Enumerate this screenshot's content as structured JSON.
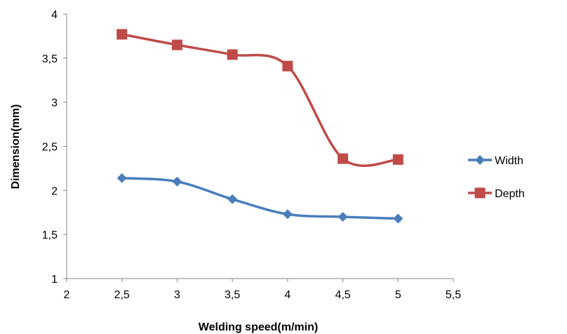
{
  "chart_data": {
    "type": "line",
    "title": "",
    "xlabel": "Welding speed(m/min)",
    "ylabel": "Dimension(mm)",
    "xlim": [
      2,
      5.5
    ],
    "ylim": [
      1,
      4
    ],
    "x_ticks": [
      "2",
      "2,5",
      "3",
      "3,5",
      "4",
      "4,5",
      "5",
      "5,5"
    ],
    "y_ticks": [
      "1",
      "1,5",
      "2",
      "2,5",
      "3",
      "3,5",
      "4"
    ],
    "x_tick_values": [
      2,
      2.5,
      3,
      3.5,
      4,
      4.5,
      5,
      5.5
    ],
    "y_tick_values": [
      1,
      1.5,
      2,
      2.5,
      3,
      3.5,
      4
    ],
    "grid": false,
    "legend_position": "right",
    "x": [
      2.5,
      3,
      3.5,
      4,
      4.5,
      5
    ],
    "series": [
      {
        "name": "Width",
        "values": [
          2.14,
          2.1,
          1.9,
          1.73,
          1.7,
          1.68
        ],
        "color": "#4a7ebb",
        "marker": "diamond"
      },
      {
        "name": "Depth",
        "values": [
          3.77,
          3.65,
          3.54,
          3.41,
          2.36,
          2.35
        ],
        "color": "#be4b48",
        "marker": "square"
      }
    ]
  }
}
